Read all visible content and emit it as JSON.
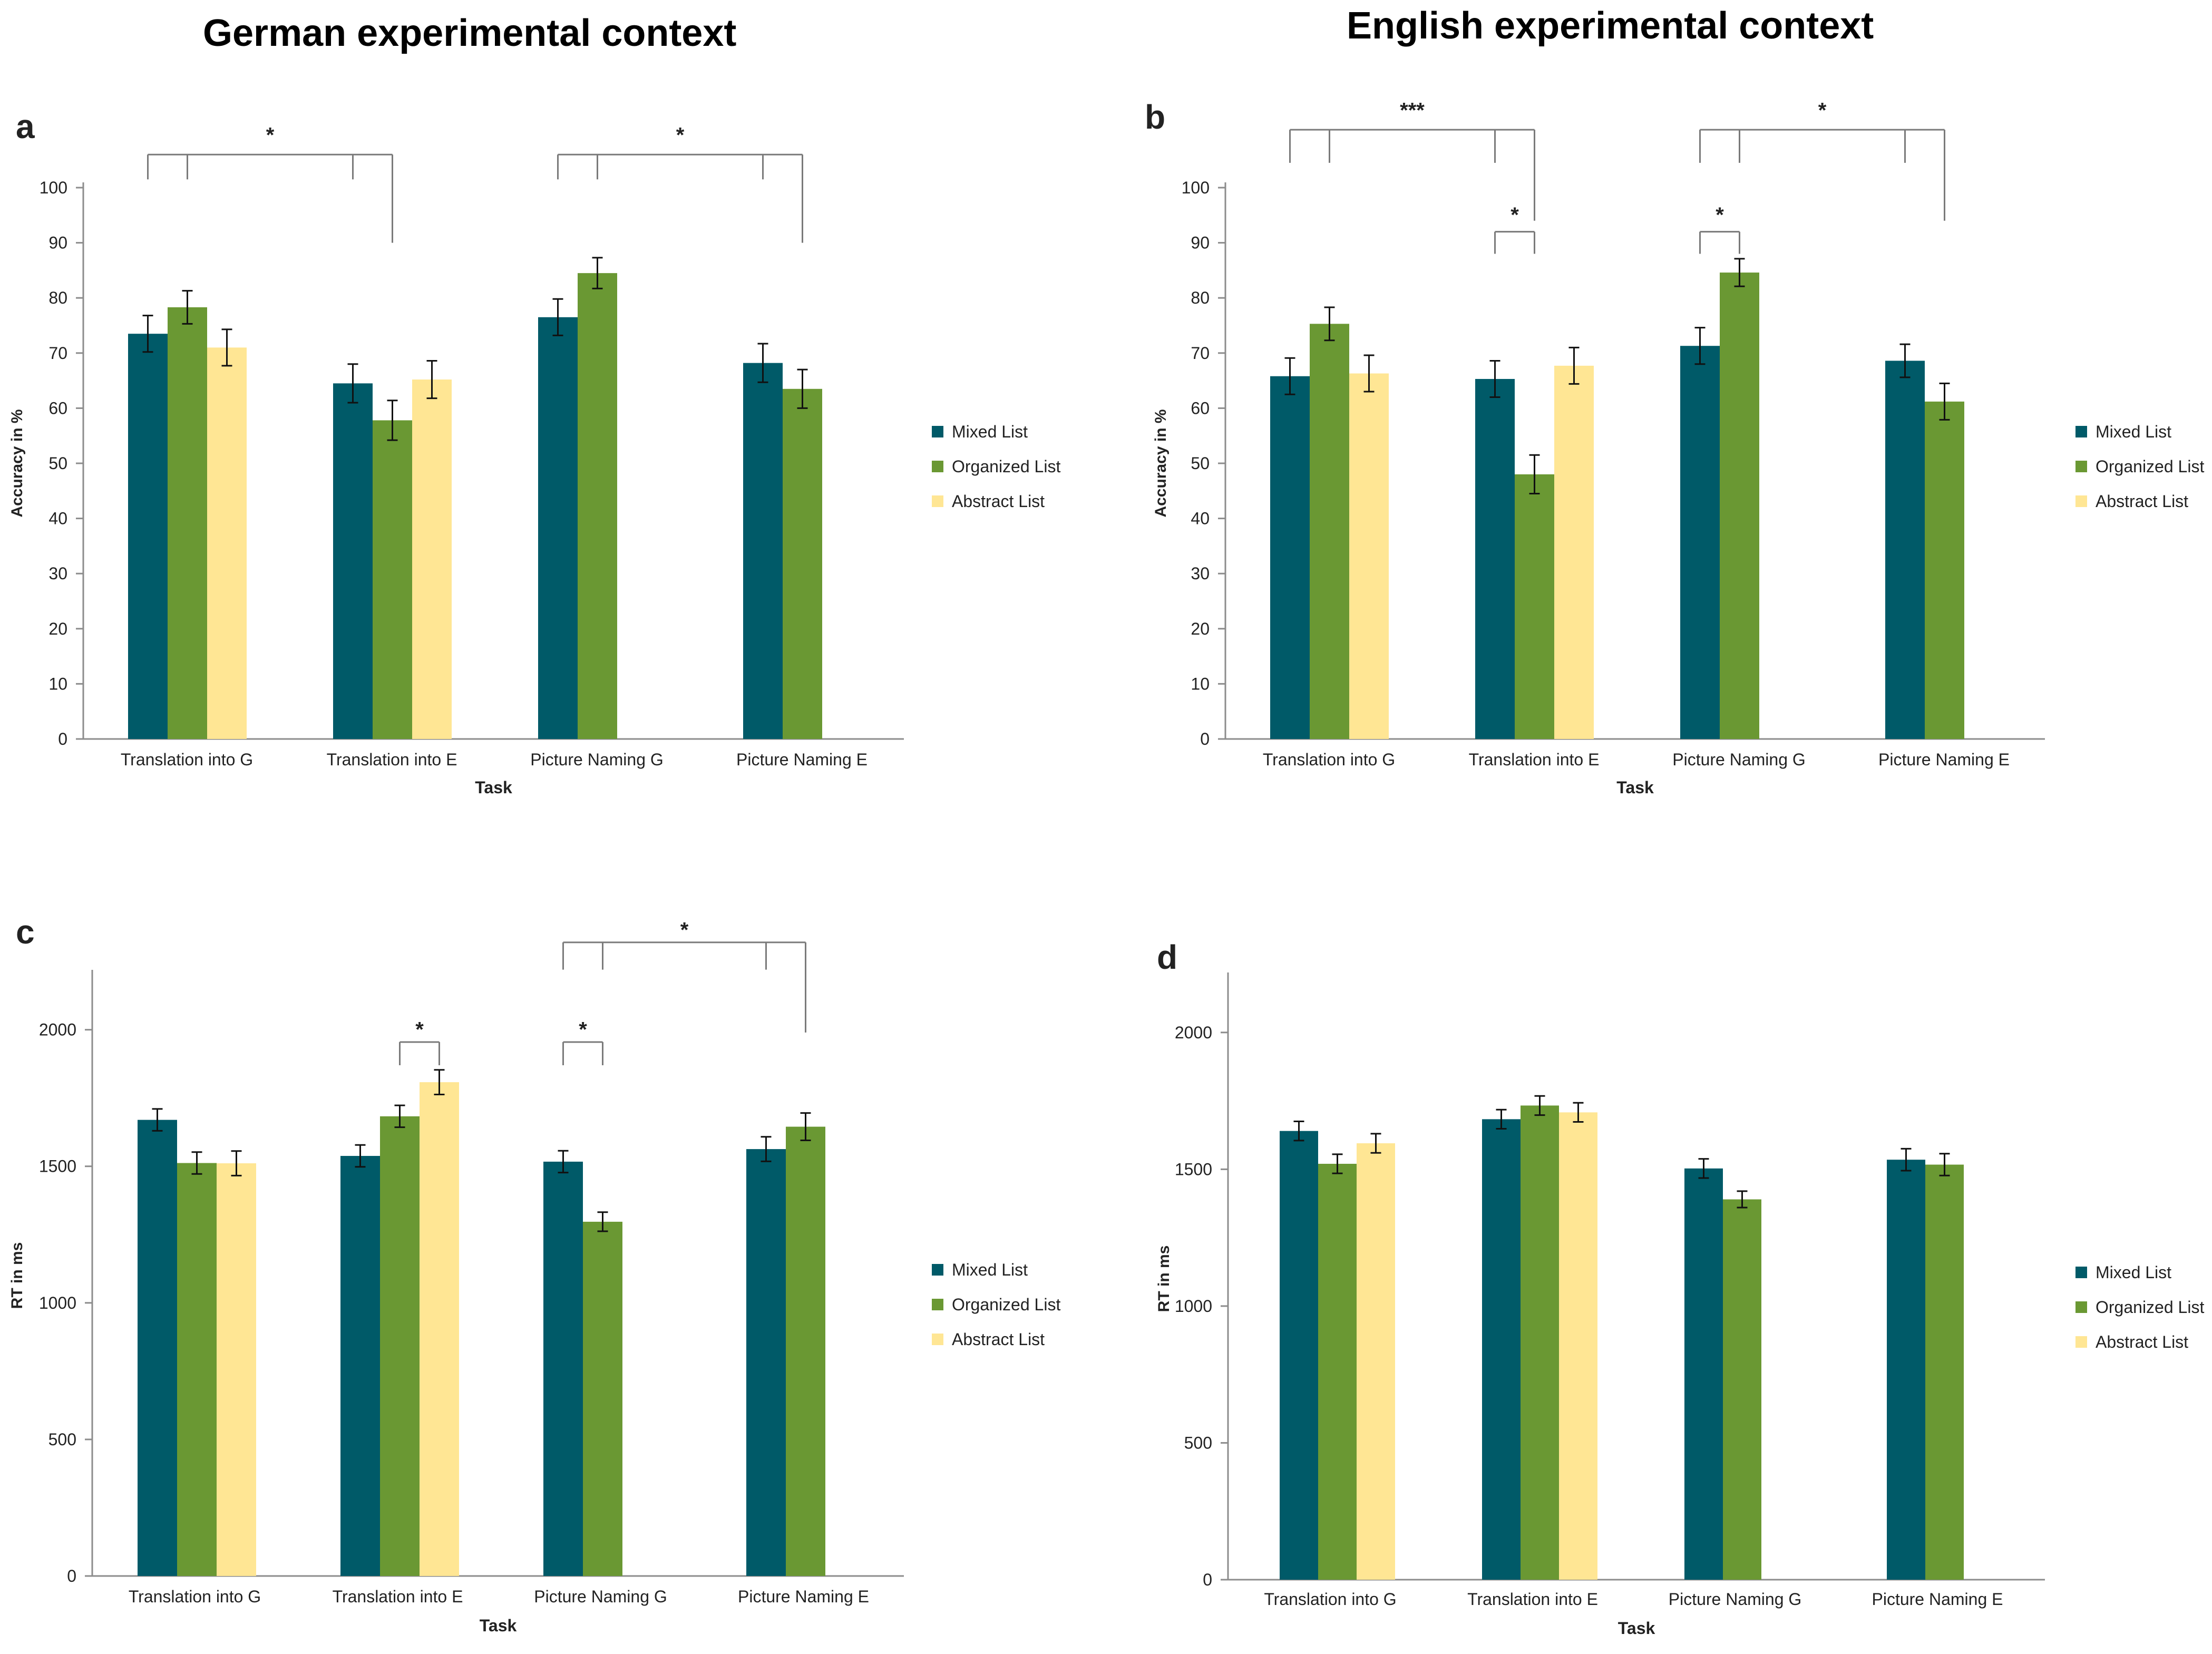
{
  "headings": {
    "left": "German experimental context",
    "right": "English experimental context"
  },
  "colors": {
    "mixed": "#005a68",
    "organized": "#6a9833",
    "abstract": "#ffe694",
    "axis": "#8c8c8c",
    "bracket": "#7a7a7a"
  },
  "chart_data": [
    {
      "id": "a",
      "type": "bar",
      "panel_label": "a",
      "ylabel": "Accuracy in %",
      "xlabel": "Task",
      "ylim": [
        0,
        100
      ],
      "ytick_values": [
        0,
        10,
        20,
        30,
        40,
        50,
        60,
        70,
        80,
        90,
        100
      ],
      "ytick_labels": [
        "0",
        "10",
        "20",
        "30",
        "40",
        "50",
        "60",
        "70",
        "80",
        "90",
        "100"
      ],
      "categories": [
        "Translation into G",
        "Translation into E",
        "Picture Naming G",
        "Picture Naming E"
      ],
      "series": [
        {
          "name": "Mixed List",
          "color": "#005a68",
          "values": [
            73.5,
            64.5,
            76.5,
            68.2
          ],
          "errors": [
            3.3,
            3.5,
            3.3,
            3.5
          ]
        },
        {
          "name": "Organized List",
          "color": "#6a9833",
          "values": [
            78.3,
            57.8,
            84.5,
            63.5
          ],
          "errors": [
            3.0,
            3.6,
            2.8,
            3.5
          ]
        },
        {
          "name": "Abstract List",
          "color": "#ffe694",
          "values": [
            71.0,
            65.2,
            null,
            null
          ],
          "errors": [
            3.3,
            3.4,
            null,
            null
          ]
        }
      ],
      "legend": [
        "Mixed List",
        "Organized List",
        "Abstract List"
      ],
      "significance": [
        {
          "label": "*",
          "level": 106.0,
          "text_level": 110.0,
          "outer": [
            0,
            1
          ],
          "inner": [
            0,
            1
          ],
          "drops": [
            [
              0,
              0,
              101.5
            ],
            [
              0,
              1,
              101.5
            ],
            [
              1,
              0,
              101.5
            ],
            [
              1,
              1,
              90.0
            ]
          ]
        },
        {
          "label": "*",
          "level": 106.0,
          "text_level": 110.0,
          "outer": [
            2,
            3
          ],
          "drops": [
            [
              2,
              0,
              101.5
            ],
            [
              2,
              1,
              101.5
            ],
            [
              3,
              0,
              101.5
            ],
            [
              3,
              1,
              90.0
            ]
          ]
        }
      ]
    },
    {
      "id": "b",
      "type": "bar",
      "panel_label": "b",
      "ylabel": "Accuracy in %",
      "xlabel": "Task",
      "ylim": [
        0,
        100
      ],
      "ytick_values": [
        0,
        10,
        20,
        30,
        40,
        50,
        60,
        70,
        80,
        90,
        100
      ],
      "ytick_labels": [
        "0",
        "10",
        "20",
        "30",
        "40",
        "50",
        "60",
        "70",
        "80",
        "90",
        "100"
      ],
      "categories": [
        "Translation into G",
        "Translation into E",
        "Picture Naming G",
        "Picture Naming E"
      ],
      "series": [
        {
          "name": "Mixed List",
          "color": "#005a68",
          "values": [
            65.8,
            65.3,
            71.3,
            68.6
          ],
          "errors": [
            3.3,
            3.3,
            3.3,
            3.0
          ]
        },
        {
          "name": "Organized List",
          "color": "#6a9833",
          "values": [
            75.3,
            48.0,
            84.6,
            61.2
          ],
          "errors": [
            3.0,
            3.5,
            2.5,
            3.3
          ]
        },
        {
          "name": "Abstract List",
          "color": "#ffe694",
          "values": [
            66.3,
            67.7,
            null,
            null
          ],
          "errors": [
            3.3,
            3.3,
            null,
            null
          ]
        }
      ],
      "legend": [
        "Mixed List",
        "Organized List",
        "Abstract List"
      ],
      "significance": [
        {
          "label": "***",
          "level": 110.5,
          "text_level": 114.5,
          "drops": [
            [
              0,
              0,
              104.5
            ],
            [
              0,
              1,
              104.5
            ],
            [
              1,
              0,
              104.5
            ],
            [
              1,
              1,
              94.0
            ]
          ]
        },
        {
          "label": "*",
          "level": 110.5,
          "text_level": 114.5,
          "drops": [
            [
              2,
              0,
              104.5
            ],
            [
              2,
              1,
              104.5
            ],
            [
              3,
              0,
              104.5
            ],
            [
              3,
              1,
              94.0
            ]
          ]
        },
        {
          "label": "*",
          "level": 92.0,
          "text_level": 95.5,
          "drops": [
            [
              1,
              0,
              88.0
            ],
            [
              1,
              1,
              88.0
            ]
          ]
        },
        {
          "label": "*",
          "level": 92.0,
          "text_level": 95.5,
          "drops": [
            [
              2,
              0,
              88.0
            ],
            [
              2,
              1,
              88.0
            ]
          ]
        }
      ]
    },
    {
      "id": "c",
      "type": "bar",
      "panel_label": "c",
      "ylabel": "RT in ms",
      "xlabel": "Task",
      "ylim": [
        0,
        2200
      ],
      "ytick_values": [
        0,
        500,
        1000,
        1500,
        2000
      ],
      "ytick_labels": [
        "0",
        "500",
        "1000",
        "1500",
        "2000"
      ],
      "categories": [
        "Translation into G",
        "Translation into E",
        "Picture Naming G",
        "Picture Naming E"
      ],
      "series": [
        {
          "name": "Mixed List",
          "color": "#005a68",
          "values": [
            1670,
            1538,
            1517,
            1563
          ],
          "errors": [
            40,
            40,
            40,
            45
          ]
        },
        {
          "name": "Organized List",
          "color": "#6a9833",
          "values": [
            1512,
            1683,
            1297,
            1645
          ],
          "errors": [
            40,
            40,
            35,
            50
          ]
        },
        {
          "name": "Abstract List",
          "color": "#ffe694",
          "values": [
            1511,
            1808,
            null,
            null
          ],
          "errors": [
            45,
            45,
            null,
            null
          ]
        }
      ],
      "legend": [
        "Mixed List",
        "Organized List",
        "Abstract List"
      ],
      "significance": [
        {
          "label": "*",
          "level": 1955,
          "text_level": 2010,
          "drops": [
            [
              1,
              1,
              1870
            ],
            [
              1,
              2,
              1870
            ]
          ]
        },
        {
          "label": "*",
          "level": 1955,
          "text_level": 2010,
          "drops": [
            [
              2,
              0,
              1870
            ],
            [
              2,
              1,
              1870
            ]
          ]
        },
        {
          "label": "*",
          "level": 2320,
          "text_level": 2375,
          "drops": [
            [
              2,
              0,
              2220
            ],
            [
              2,
              1,
              2220
            ],
            [
              3,
              0,
              2220
            ],
            [
              3,
              1,
              1990
            ]
          ]
        }
      ]
    },
    {
      "id": "d",
      "type": "bar",
      "panel_label": "d",
      "ylabel": "RT in ms",
      "xlabel": "Task",
      "ylim": [
        0,
        2200
      ],
      "ytick_values": [
        0,
        500,
        1000,
        1500,
        2000
      ],
      "ytick_labels": [
        "0",
        "500",
        "1000",
        "1500",
        "2000"
      ],
      "categories": [
        "Translation into G",
        "Translation into E",
        "Picture Naming G",
        "Picture Naming E"
      ],
      "series": [
        {
          "name": "Mixed List",
          "color": "#005a68",
          "values": [
            1640,
            1683,
            1503,
            1535
          ],
          "errors": [
            35,
            35,
            35,
            40
          ]
        },
        {
          "name": "Organized List",
          "color": "#6a9833",
          "values": [
            1520,
            1733,
            1390,
            1517
          ],
          "errors": [
            35,
            35,
            30,
            40
          ]
        },
        {
          "name": "Abstract List",
          "color": "#ffe694",
          "values": [
            1595,
            1708,
            null,
            null
          ],
          "errors": [
            35,
            35,
            null,
            null
          ]
        }
      ],
      "legend": [
        "Mixed List",
        "Organized List",
        "Abstract List"
      ],
      "significance": []
    }
  ]
}
